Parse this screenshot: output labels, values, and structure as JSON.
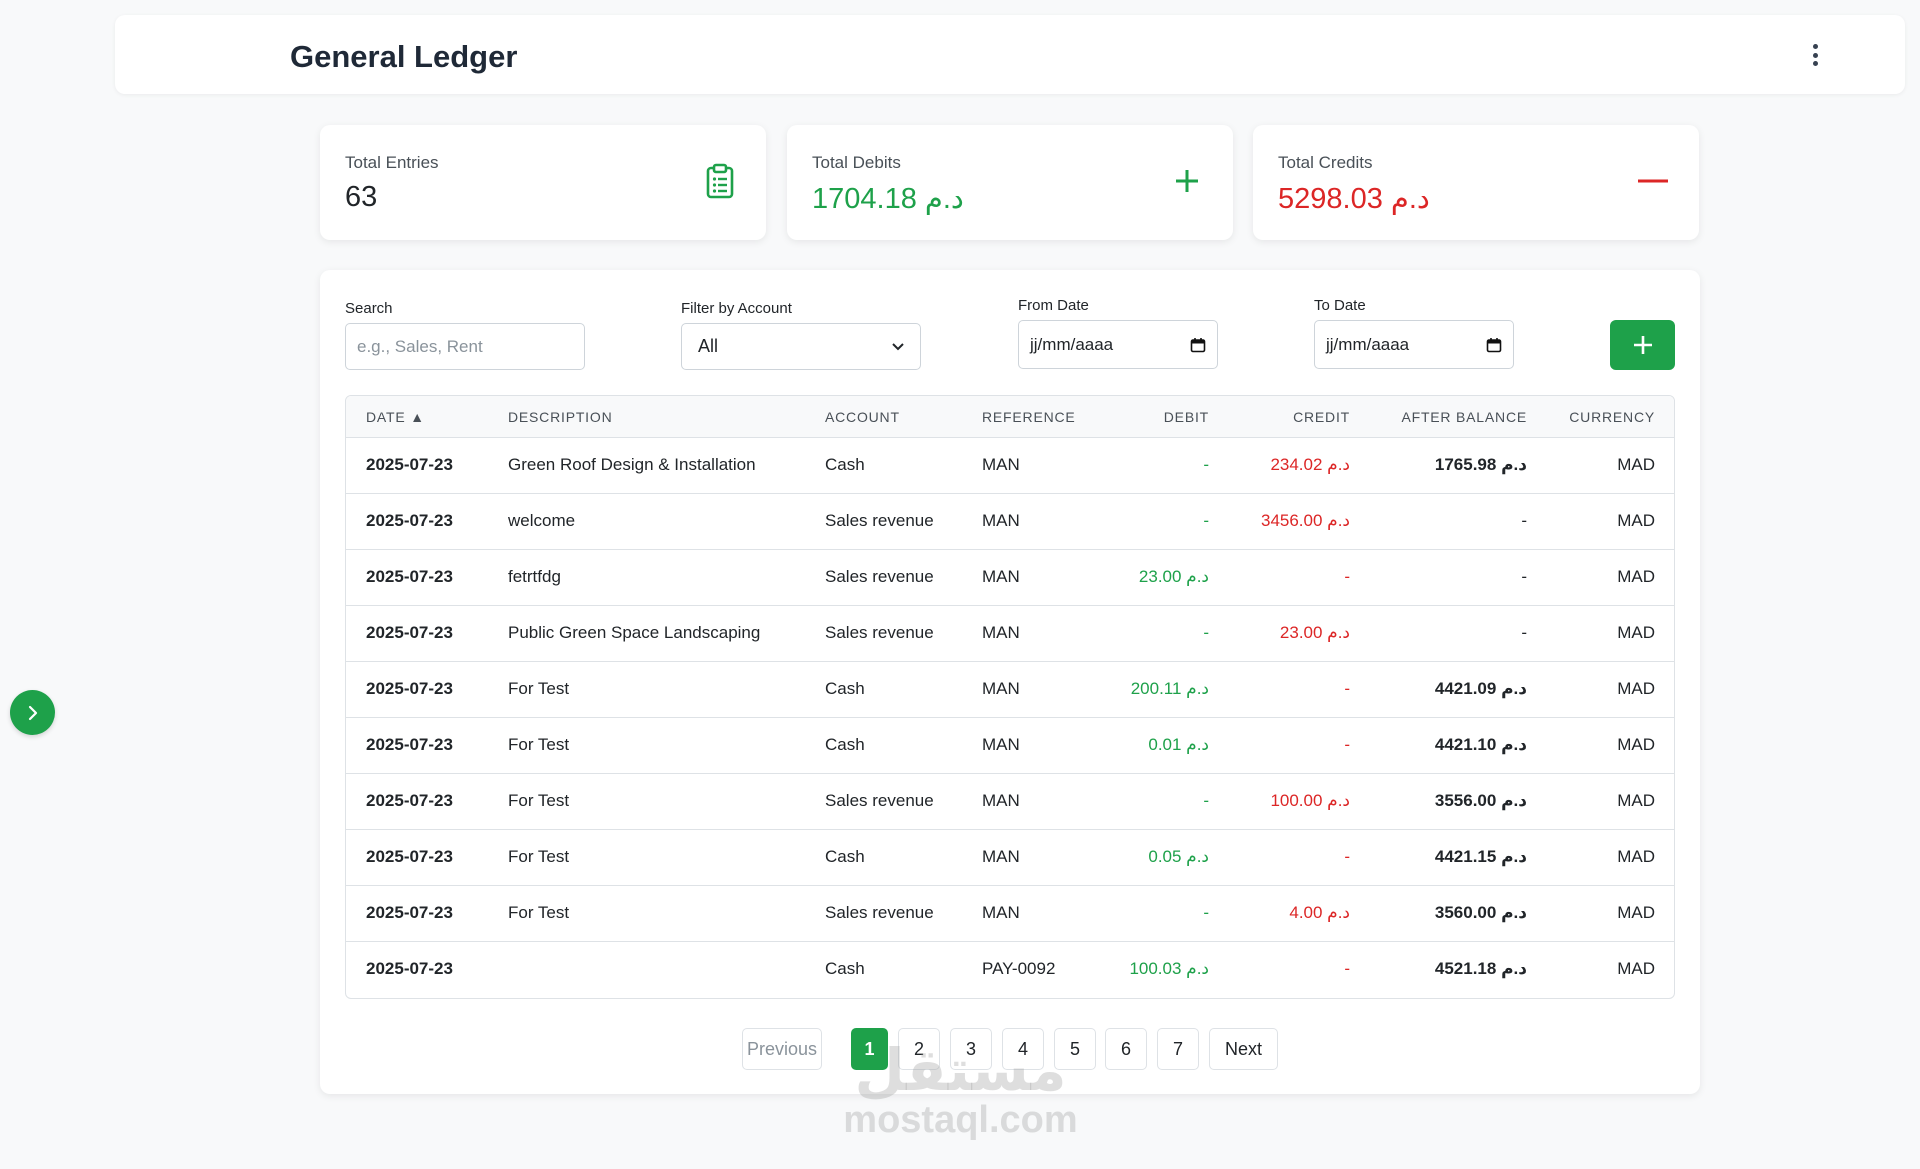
{
  "header": {
    "title": "General Ledger"
  },
  "stats": [
    {
      "label": "Total Entries",
      "value": "63",
      "color": "#212529",
      "icon": "clipboard-list-icon"
    },
    {
      "label": "Total Debits",
      "value": "1704.18 د.م",
      "color": "#1ea14a",
      "icon": "plus-icon"
    },
    {
      "label": "Total Credits",
      "value": "5298.03 د.م",
      "color": "#dc2626",
      "icon": "minus-icon"
    }
  ],
  "filters": {
    "search_label": "Search",
    "search_placeholder": "e.g., Sales, Rent",
    "account_label": "Filter by Account",
    "account_value": "All",
    "from_label": "From Date",
    "from_value": "jj/mm/aaaa",
    "to_label": "To Date",
    "to_value": "jj/mm/aaaa"
  },
  "table": {
    "headers": {
      "date": "DATE ▲",
      "description": "DESCRIPTION",
      "account": "ACCOUNT",
      "reference": "REFERENCE",
      "debit": "DEBIT",
      "credit": "CREDIT",
      "balance": "AFTER BALANCE",
      "currency": "CURRENCY"
    },
    "rows": [
      {
        "date": "2025-07-23",
        "description": "Green Roof Design & Installation",
        "account": "Cash",
        "reference": "MAN",
        "debit": "-",
        "credit": "234.02 د.م",
        "balance": "1765.98 د.م",
        "currency": "MAD"
      },
      {
        "date": "2025-07-23",
        "description": "welcome",
        "account": "Sales revenue",
        "reference": "MAN",
        "debit": "-",
        "credit": "3456.00 د.م",
        "balance": "-",
        "currency": "MAD"
      },
      {
        "date": "2025-07-23",
        "description": "fetrtfdg",
        "account": "Sales revenue",
        "reference": "MAN",
        "debit": "23.00 د.م",
        "credit": "-",
        "balance": "-",
        "currency": "MAD"
      },
      {
        "date": "2025-07-23",
        "description": "Public Green Space Landscaping",
        "account": "Sales revenue",
        "reference": "MAN",
        "debit": "-",
        "credit": "23.00 د.م",
        "balance": "-",
        "currency": "MAD"
      },
      {
        "date": "2025-07-23",
        "description": "For Test",
        "account": "Cash",
        "reference": "MAN",
        "debit": "200.11 د.م",
        "credit": "-",
        "balance": "4421.09 د.م",
        "currency": "MAD"
      },
      {
        "date": "2025-07-23",
        "description": "For Test",
        "account": "Cash",
        "reference": "MAN",
        "debit": "0.01 د.م",
        "credit": "-",
        "balance": "4421.10 د.م",
        "currency": "MAD"
      },
      {
        "date": "2025-07-23",
        "description": "For Test",
        "account": "Sales revenue",
        "reference": "MAN",
        "debit": "-",
        "credit": "100.00 د.م",
        "balance": "3556.00 د.م",
        "currency": "MAD"
      },
      {
        "date": "2025-07-23",
        "description": "For Test",
        "account": "Cash",
        "reference": "MAN",
        "debit": "0.05 د.م",
        "credit": "-",
        "balance": "4421.15 د.م",
        "currency": "MAD"
      },
      {
        "date": "2025-07-23",
        "description": "For Test",
        "account": "Sales revenue",
        "reference": "MAN",
        "debit": "-",
        "credit": "4.00 د.م",
        "balance": "3560.00 د.م",
        "currency": "MAD"
      },
      {
        "date": "2025-07-23",
        "description": "",
        "account": "Cash",
        "reference": "PAY-0092",
        "debit": "100.03 د.م",
        "credit": "-",
        "balance": "4521.18 د.م",
        "currency": "MAD"
      }
    ]
  },
  "pagination": {
    "previous": "Previous",
    "next": "Next",
    "pages": [
      "1",
      "2",
      "3",
      "4",
      "5",
      "6",
      "7"
    ],
    "current": "1"
  },
  "watermark": {
    "logo": "مستقل",
    "url": "mostaql.com"
  },
  "colors": {
    "accent": "#1ea14a",
    "danger": "#dc2626"
  }
}
